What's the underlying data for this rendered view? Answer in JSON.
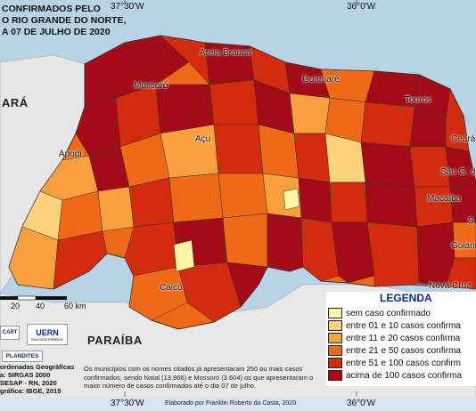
{
  "title_lines": [
    "CONFIRMADOS PELO",
    "O RIO GRANDE DO NORTE,",
    "A 07 DE JULHO DE 2020"
  ],
  "coords": {
    "top_left": "37°30'W",
    "top_right": "36°0'W",
    "bottom_left": "37°30'W",
    "bottom_right": "36°0'W"
  },
  "states": {
    "ceara": "ARÁ",
    "paraiba": "PARAÍBA"
  },
  "cities": {
    "areia_branca": "Areia Branca",
    "mossoro": "Mossoró",
    "guamare": "Guamaré",
    "touros": "Touros",
    "apodi": "Apodi",
    "acu": "Açu",
    "ceara_mirim": "Ceará-",
    "sao_goncalo": "São G. do",
    "macaiba": "Macaíba",
    "s": "S",
    "goianinha": "Goiani",
    "nova_cruz": "Nova Cruz",
    "caico": "Caicó"
  },
  "scale": {
    "ticks": [
      "20",
      "40",
      "60 km"
    ]
  },
  "legend": {
    "title": "LEGENDA",
    "items": [
      {
        "label": "sem caso confirmado",
        "color": "#fff7a6"
      },
      {
        "label": "entre 01 e 10 casos confirma",
        "color": "#fdd27a"
      },
      {
        "label": "entre 11 e 20 casos confirma",
        "color": "#f8a03e"
      },
      {
        "label": "entre 21 e 50 casos confirma",
        "color": "#ee6a16"
      },
      {
        "label": "entre 51 e 100 casos confirm",
        "color": "#d22c0c"
      },
      {
        "label": "acima de 100 casos confirma",
        "color": "#a30b17"
      }
    ]
  },
  "logos": {
    "cart": "CART",
    "uern": "UERN",
    "uern_sub": "PAU DOS FERROS",
    "plandites": "PLANDITES"
  },
  "credits_lines": [
    "ordenadas Geográficas",
    "a: SIRGAS 2000",
    "SESAP - RN, 2020",
    "gráfica: IBGE, 2015"
  ],
  "note": "Os municípios com os nomes citados já apresentaram 250 ou mais casos confirmados, sendo Natal (13.966) e Mossoró (3.604) os que apresentaram o maior número de casos confirmados até o dia 07 de julho.",
  "author": "Elaborado por Franklin Roberto da Costa, 2020"
}
